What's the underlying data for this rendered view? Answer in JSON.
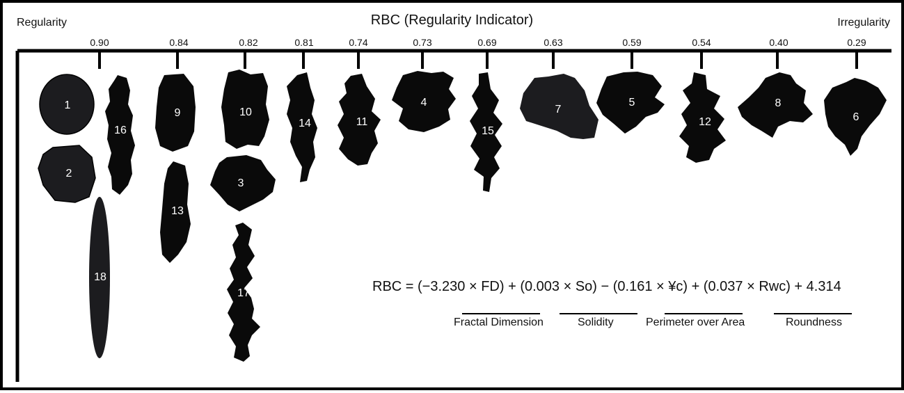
{
  "title": "RBC (Regularity Indicator)",
  "left_label": "Regularity",
  "right_label": "Irregularity",
  "scale_ticks": [
    "0.90",
    "0.84",
    "0.82",
    "0.81",
    "0.74",
    "0.73",
    "0.69",
    "0.63",
    "0.59",
    "0.54",
    "0.40",
    "0.29"
  ],
  "shape_numbers": [
    "1",
    "2",
    "16",
    "18",
    "9",
    "13",
    "10",
    "3",
    "17",
    "14",
    "11",
    "4",
    "15",
    "7",
    "5",
    "12",
    "8",
    "6"
  ],
  "formula": "RBC = (−3.230 × FD) + (0.003 × So) − (0.161 × ¥c) + (0.037 × Rwc) + 4.314",
  "terms": [
    "Fractal Dimension",
    "Solidity",
    "Perimeter over Area",
    "Roundness"
  ],
  "colors": {
    "shape_fill": "#0a0a0a",
    "shape_light": "#1c1c1f",
    "line": "#000000"
  }
}
